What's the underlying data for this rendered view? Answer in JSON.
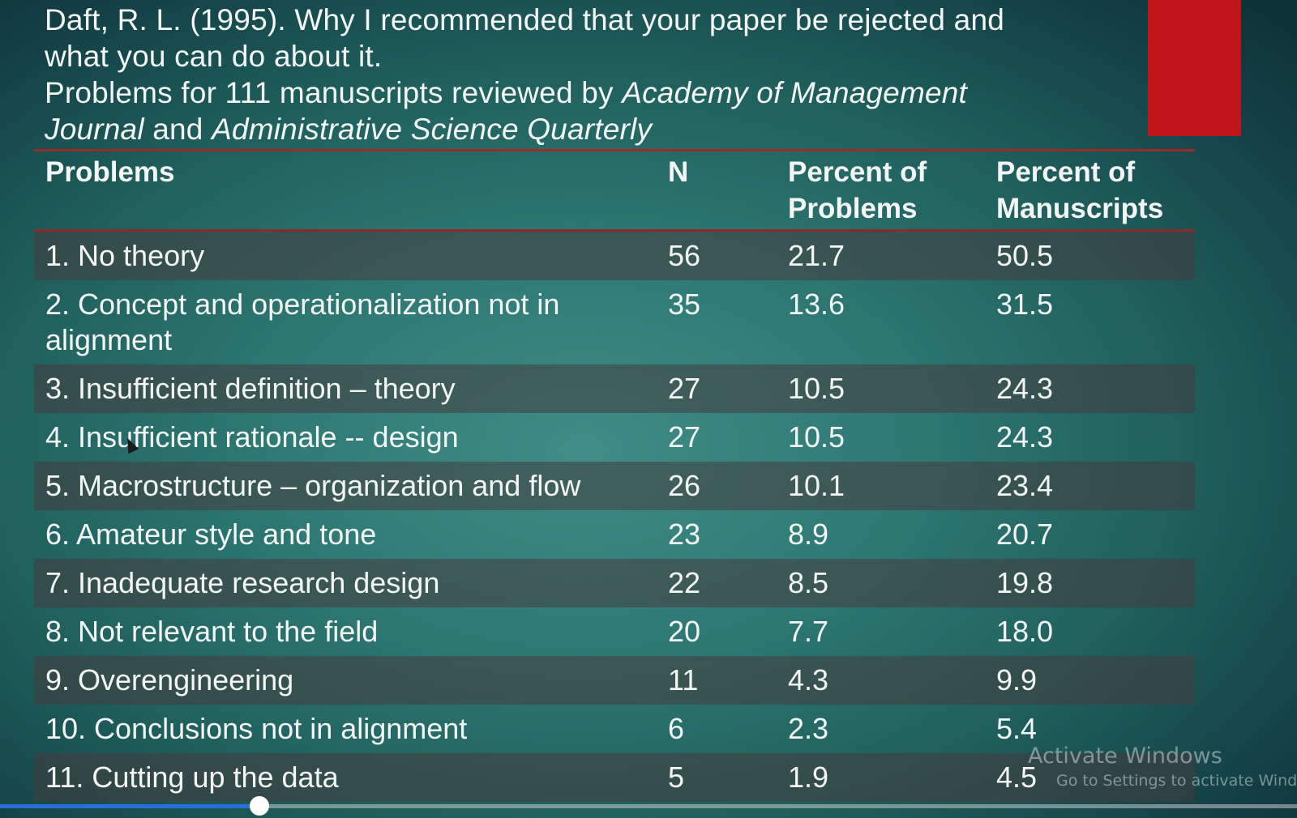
{
  "slide": {
    "title_lines": [
      "Daft, R. L. (1995). Why I recommended that your paper be rejected and",
      "what you can do about it."
    ],
    "subtitle_prefix": "Problems for 111 manuscripts reviewed by ",
    "subtitle_italic_1": "Academy of Management",
    "subtitle_italic_2": "Journal",
    "subtitle_middle": " and ",
    "subtitle_italic_3": "Administrative Science Quarterly",
    "accent_color": "#c0161b"
  },
  "table": {
    "headers": {
      "problems": "Problems",
      "n": "N",
      "pct_problems_1": "Percent of",
      "pct_problems_2": "Problems",
      "pct_manuscripts_1": "Percent of",
      "pct_manuscripts_2": "Manuscripts"
    },
    "rows": [
      {
        "problem": "1. No theory",
        "n": "56",
        "pct_problems": "21.7",
        "pct_manuscripts": "50.5"
      },
      {
        "problem": "2. Concept and operationalization not in alignment",
        "n": "35",
        "pct_problems": "13.6",
        "pct_manuscripts": "31.5"
      },
      {
        "problem": "3. Insufficient definition – theory",
        "n": "27",
        "pct_problems": "10.5",
        "pct_manuscripts": "24.3"
      },
      {
        "problem": "4. Insufficient rationale -- design",
        "n": "27",
        "pct_problems": "10.5",
        "pct_manuscripts": "24.3"
      },
      {
        "problem": "5. Macrostructure – organization and flow",
        "n": "26",
        "pct_problems": "10.1",
        "pct_manuscripts": "23.4"
      },
      {
        "problem": "6. Amateur style and tone",
        "n": "23",
        "pct_problems": "8.9",
        "pct_manuscripts": "20.7"
      },
      {
        "problem": "7. Inadequate research design",
        "n": "22",
        "pct_problems": "8.5",
        "pct_manuscripts": "19.8"
      },
      {
        "problem": "8. Not relevant to the field",
        "n": "20",
        "pct_problems": "7.7",
        "pct_manuscripts": "18.0"
      },
      {
        "problem": "9. Overengineering",
        "n": "11",
        "pct_problems": "4.3",
        "pct_manuscripts": "9.9"
      },
      {
        "problem": "10. Conclusions not in alignment",
        "n": "6",
        "pct_problems": "2.3",
        "pct_manuscripts": "5.4"
      },
      {
        "problem": "11. Cutting up the data",
        "n": "5",
        "pct_problems": "1.9",
        "pct_manuscripts": "4.5"
      }
    ]
  },
  "watermark": {
    "title": "Activate Windows",
    "subtitle": "Go to Settings to activate Windows."
  },
  "video_player": {
    "progress_fraction": 0.2
  }
}
